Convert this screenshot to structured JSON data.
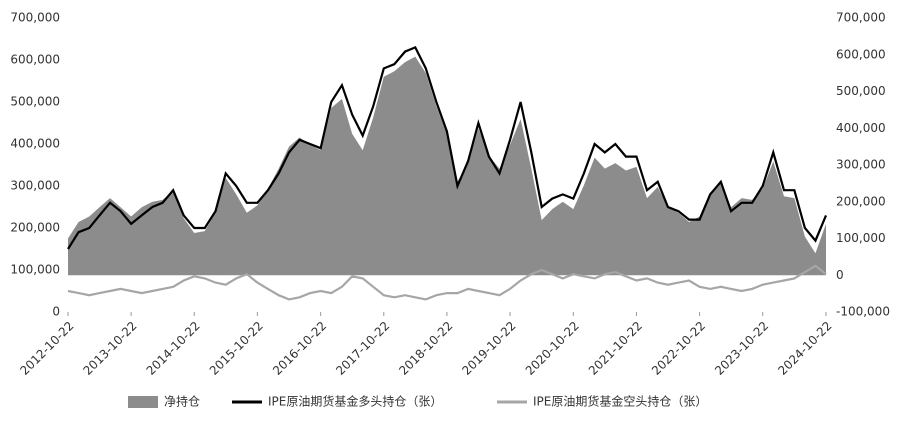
{
  "chart_data": {
    "type": "line",
    "x": [
      "2012-10-22",
      "2012-12-22",
      "2013-02-22",
      "2013-04-22",
      "2013-06-22",
      "2013-08-22",
      "2013-10-22",
      "2013-12-22",
      "2014-02-22",
      "2014-04-22",
      "2014-06-22",
      "2014-08-22",
      "2014-10-22",
      "2014-12-22",
      "2015-02-22",
      "2015-04-22",
      "2015-06-22",
      "2015-08-22",
      "2015-10-22",
      "2015-12-22",
      "2016-02-22",
      "2016-04-22",
      "2016-06-22",
      "2016-08-22",
      "2016-10-22",
      "2016-12-22",
      "2017-02-22",
      "2017-04-22",
      "2017-06-22",
      "2017-08-22",
      "2017-10-22",
      "2017-12-22",
      "2018-02-22",
      "2018-04-22",
      "2018-06-22",
      "2018-08-22",
      "2018-10-22",
      "2018-12-22",
      "2019-02-22",
      "2019-04-22",
      "2019-06-22",
      "2019-08-22",
      "2019-10-22",
      "2019-12-22",
      "2020-02-22",
      "2020-04-22",
      "2020-06-22",
      "2020-08-22",
      "2020-10-22",
      "2020-12-22",
      "2021-02-22",
      "2021-04-22",
      "2021-06-22",
      "2021-08-22",
      "2021-10-22",
      "2021-12-22",
      "2022-02-22",
      "2022-04-22",
      "2022-06-22",
      "2022-08-22",
      "2022-10-22",
      "2022-12-22",
      "2023-02-22",
      "2023-04-22",
      "2023-06-22",
      "2023-08-22",
      "2023-10-22",
      "2023-12-22",
      "2024-02-22",
      "2024-04-22",
      "2024-06-22",
      "2024-08-22",
      "2024-10-22"
    ],
    "xlim": [
      "2012-10-22",
      "2024-10-22"
    ],
    "xticks": [
      "2012-10-22",
      "2013-10-22",
      "2014-10-22",
      "2015-10-22",
      "2016-10-22",
      "2017-10-22",
      "2018-10-22",
      "2019-10-22",
      "2020-10-22",
      "2021-10-22",
      "2022-10-22",
      "2023-10-22",
      "2024-10-22"
    ],
    "ylim": [
      0,
      700000
    ],
    "yticks": [
      0,
      {
        "value": 100000,
        "label": "100,000"
      },
      {
        "value": 200000,
        "label": "200,000"
      },
      {
        "value": 300000,
        "label": "300,000"
      },
      {
        "value": 400000,
        "label": "400,000"
      },
      {
        "value": 500000,
        "label": "500,000"
      },
      {
        "value": 600000,
        "label": "600,000"
      },
      {
        "value": 700000,
        "label": "700,000"
      }
    ],
    "y2lim": [
      -100000,
      700000
    ],
    "y2ticks": [
      {
        "value": -100000,
        "label": "-100,000"
      },
      0,
      {
        "value": 100000,
        "label": "100,000"
      },
      {
        "value": 200000,
        "label": "200,000"
      },
      {
        "value": 300000,
        "label": "300,000"
      },
      {
        "value": 400000,
        "label": "400,000"
      },
      {
        "value": 500000,
        "label": "500,000"
      },
      {
        "value": 600000,
        "label": "600,000"
      },
      {
        "value": 700000,
        "label": "700,000"
      }
    ],
    "series": [
      {
        "name": "净持仓",
        "type": "area",
        "axis": "y2",
        "color": "#8c8c8c",
        "values": [
          100000,
          145000,
          160000,
          185000,
          210000,
          185000,
          160000,
          185000,
          200000,
          205000,
          230000,
          155000,
          115000,
          120000,
          170000,
          265000,
          220000,
          170000,
          190000,
          235000,
          290000,
          350000,
          375000,
          355000,
          340000,
          455000,
          480000,
          385000,
          340000,
          430000,
          540000,
          555000,
          580000,
          595000,
          550000,
          460000,
          385000,
          255000,
          305000,
          400000,
          325000,
          290000,
          355000,
          425000,
          290000,
          150000,
          180000,
          200000,
          180000,
          245000,
          320000,
          290000,
          305000,
          285000,
          295000,
          210000,
          240000,
          185000,
          170000,
          145000,
          160000,
          225000,
          250000,
          185000,
          210000,
          205000,
          235000,
          310000,
          215000,
          210000,
          105000,
          60000,
          140000
        ]
      },
      {
        "name": "IPE原油期货基金多头持仓（张）",
        "type": "line",
        "color": "#000000",
        "values": [
          150000,
          190000,
          200000,
          230000,
          260000,
          240000,
          210000,
          230000,
          250000,
          260000,
          290000,
          230000,
          200000,
          200000,
          240000,
          330000,
          300000,
          260000,
          260000,
          290000,
          330000,
          380000,
          410000,
          400000,
          390000,
          500000,
          540000,
          470000,
          420000,
          490000,
          580000,
          590000,
          620000,
          630000,
          580000,
          500000,
          430000,
          300000,
          360000,
          450000,
          370000,
          330000,
          410000,
          500000,
          380000,
          250000,
          270000,
          280000,
          270000,
          330000,
          400000,
          380000,
          400000,
          370000,
          370000,
          290000,
          310000,
          250000,
          240000,
          220000,
          220000,
          280000,
          310000,
          240000,
          260000,
          260000,
          300000,
          380000,
          290000,
          290000,
          200000,
          170000,
          230000
        ]
      },
      {
        "name": "IPE原油期货基金空头持仓（张）",
        "type": "line",
        "color": "#a6a6a6",
        "values": [
          50000,
          45000,
          40000,
          45000,
          50000,
          55000,
          50000,
          45000,
          50000,
          55000,
          60000,
          75000,
          85000,
          80000,
          70000,
          65000,
          80000,
          90000,
          70000,
          55000,
          40000,
          30000,
          35000,
          45000,
          50000,
          45000,
          60000,
          85000,
          80000,
          60000,
          40000,
          35000,
          40000,
          35000,
          30000,
          40000,
          45000,
          45000,
          55000,
          50000,
          45000,
          40000,
          55000,
          75000,
          90000,
          100000,
          90000,
          80000,
          90000,
          85000,
          80000,
          90000,
          95000,
          85000,
          75000,
          80000,
          70000,
          65000,
          70000,
          75000,
          60000,
          55000,
          60000,
          55000,
          50000,
          55000,
          65000,
          70000,
          75000,
          80000,
          95000,
          110000,
          90000
        ]
      }
    ],
    "legend": "bottom"
  }
}
